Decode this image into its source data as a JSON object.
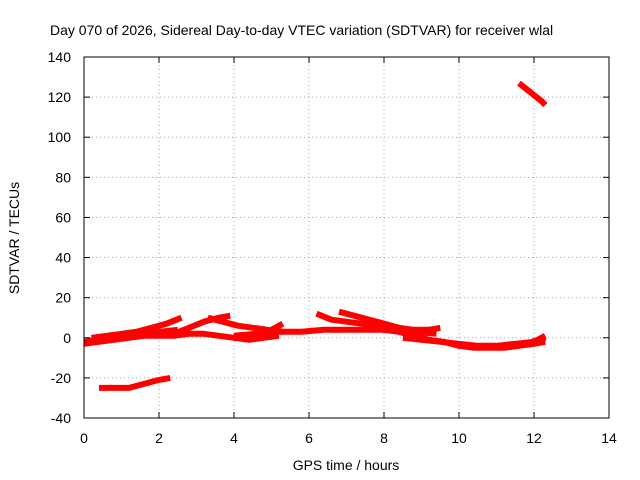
{
  "chart_data": {
    "type": "line",
    "title": "Day 070 of 2026, Sidereal Day-to-day VTEC variation (SDTVAR) for receiver wlal",
    "xlabel": "GPS time / hours",
    "ylabel": "SDTVAR / TECUs",
    "xlim": [
      0,
      14
    ],
    "ylim": [
      -40,
      140
    ],
    "x_ticks": [
      "0",
      "2",
      "4",
      "6",
      "8",
      "10",
      "12",
      "14"
    ],
    "y_ticks": [
      "-40",
      "-20",
      "0",
      "20",
      "40",
      "60",
      "80",
      "100",
      "120",
      "140"
    ],
    "grid": true,
    "legend": "none",
    "color": "#ff0000",
    "series": [
      {
        "x": [
          0.0,
          0.4,
          0.8,
          1.2,
          1.6,
          2.0,
          2.4,
          2.8,
          3.2,
          3.6,
          4.0,
          4.4,
          4.8,
          5.2
        ],
        "y": [
          -3,
          -2,
          -1,
          0,
          1,
          1,
          1,
          2,
          2,
          1,
          0,
          -1,
          0,
          1
        ]
      },
      {
        "x": [
          0.0,
          0.3,
          0.6,
          0.9,
          1.2
        ],
        "y": [
          -2,
          -1,
          0,
          1,
          2
        ]
      },
      {
        "x": [
          0.2,
          0.6,
          1.0,
          1.4,
          1.8,
          2.2,
          2.6
        ],
        "y": [
          0,
          1,
          2,
          3,
          5,
          7,
          10
        ]
      },
      {
        "x": [
          1.0,
          1.5,
          2.0,
          2.5
        ],
        "y": [
          1,
          2,
          3,
          4
        ]
      },
      {
        "x": [
          2.4,
          2.8,
          3.2,
          3.6,
          3.9
        ],
        "y": [
          2,
          5,
          8,
          10,
          11
        ]
      },
      {
        "x": [
          3.3,
          3.7,
          4.1,
          4.5,
          4.9,
          5.3
        ],
        "y": [
          10,
          8,
          6,
          5,
          4,
          3
        ]
      },
      {
        "x": [
          4.8,
          5.0,
          5.3
        ],
        "y": [
          2,
          4,
          7
        ]
      },
      {
        "x": [
          4.0,
          4.6,
          5.2,
          5.8,
          6.4,
          7.0,
          7.6,
          8.2,
          8.8,
          9.4
        ],
        "y": [
          1,
          2,
          3,
          3,
          4,
          4,
          4,
          4,
          3,
          2
        ]
      },
      {
        "x": [
          6.2,
          6.6,
          7.0,
          7.4,
          7.8,
          8.2,
          8.6
        ],
        "y": [
          12,
          9,
          8,
          7,
          6,
          5,
          4
        ]
      },
      {
        "x": [
          6.8,
          7.2,
          7.6,
          8.0,
          8.4,
          8.8,
          9.2,
          9.5
        ],
        "y": [
          13,
          11,
          9,
          7,
          5,
          4,
          4,
          5
        ]
      },
      {
        "x": [
          7.6,
          8.0,
          8.4,
          8.8,
          9.2,
          9.6,
          10.0,
          10.4,
          10.8,
          11.2,
          11.6,
          12.0,
          12.3
        ],
        "y": [
          5,
          4,
          3,
          1,
          -1,
          -2,
          -4,
          -5,
          -5,
          -5,
          -4,
          -3,
          -2
        ]
      },
      {
        "x": [
          8.5,
          9.0,
          9.5,
          10.0,
          10.5,
          11.0,
          11.5,
          12.0,
          12.3
        ],
        "y": [
          0,
          -1,
          -2,
          -3,
          -4,
          -4,
          -3,
          -2,
          0
        ]
      },
      {
        "x": [
          11.5,
          11.8,
          12.1,
          12.3
        ],
        "y": [
          -4,
          -3,
          -1,
          1
        ]
      },
      {
        "x": [
          0.4,
          0.8,
          1.2,
          1.4,
          1.6,
          1.8,
          2.0,
          2.3
        ],
        "y": [
          -25,
          -25,
          -25,
          -24,
          -23,
          -22,
          -21,
          -20
        ]
      },
      {
        "x": [
          11.6,
          11.8,
          12.0,
          12.2,
          12.3
        ],
        "y": [
          127,
          124,
          121,
          118,
          116
        ]
      }
    ]
  }
}
